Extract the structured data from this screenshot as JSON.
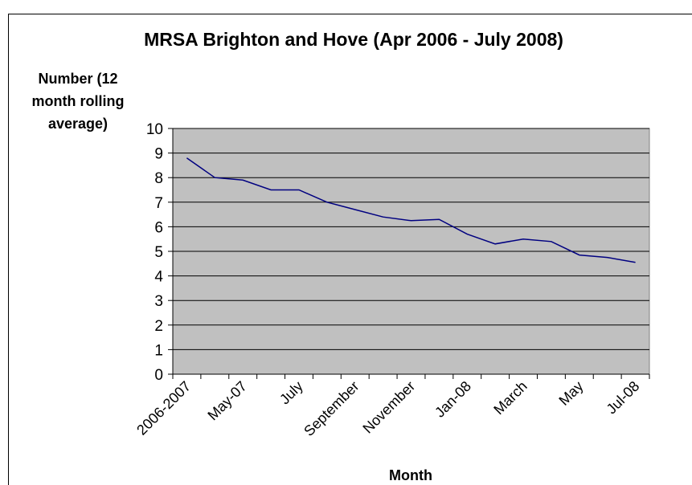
{
  "chart_data": {
    "type": "line",
    "title": "MRSA Brighton and Hove (Apr 2006 - July 2008)",
    "y_label": [
      "Number (12",
      "month rolling",
      "average)"
    ],
    "x_label": "Month",
    "categories": [
      "2006-2007",
      null,
      "May-07",
      null,
      "July",
      null,
      "September",
      null,
      "November",
      null,
      "Jan-08",
      null,
      "March",
      null,
      "May",
      null,
      "Jul-08"
    ],
    "series": [
      {
        "name": "MRSA",
        "color": "#000080",
        "values": [
          8.8,
          8.0,
          7.9,
          7.5,
          7.5,
          7.0,
          6.7,
          6.4,
          6.25,
          6.3,
          5.7,
          5.3,
          5.5,
          5.4,
          4.85,
          4.75,
          4.55
        ]
      }
    ],
    "ylim": [
      0,
      10
    ],
    "yticks": [
      0,
      1,
      2,
      3,
      4,
      5,
      6,
      7,
      8,
      9,
      10
    ],
    "grid": true,
    "plot_background": "#c0c0c0"
  }
}
